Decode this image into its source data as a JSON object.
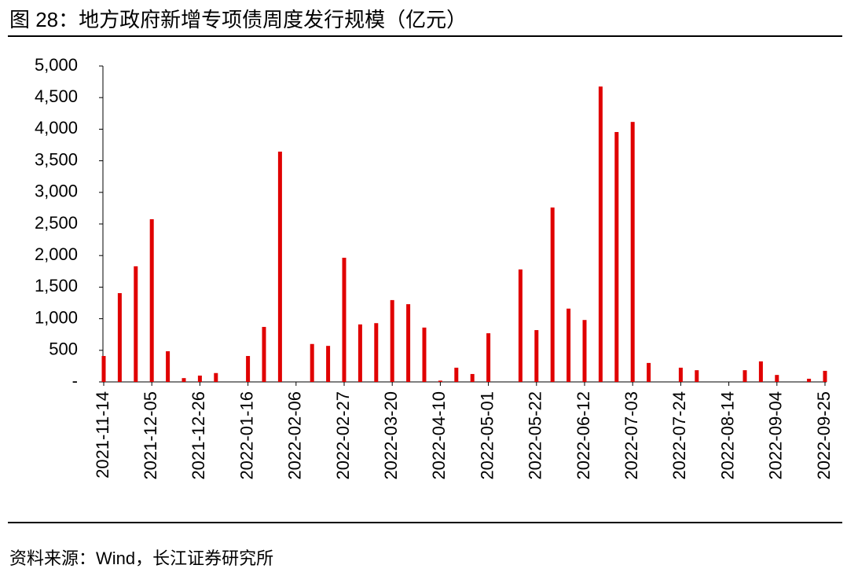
{
  "title": "图 28：地方政府新增专项债周度发行规模（亿元）",
  "source": "资料来源：Wind，长江证券研究所",
  "chart_data": {
    "type": "bar",
    "color": "#e00000",
    "categories": [
      "2021-11-14",
      null,
      null,
      "2021-12-05",
      null,
      null,
      "2021-12-26",
      null,
      null,
      "2022-01-16",
      null,
      null,
      "2022-02-06",
      null,
      null,
      "2022-02-27",
      null,
      null,
      "2022-03-20",
      null,
      null,
      "2022-04-10",
      null,
      null,
      "2022-05-01",
      null,
      null,
      "2022-05-22",
      null,
      null,
      "2022-06-12",
      null,
      null,
      "2022-07-03",
      null,
      null,
      "2022-07-24",
      null,
      null,
      "2022-08-14",
      null,
      null,
      "2022-09-04",
      null,
      null,
      "2022-09-25"
    ],
    "values": [
      410,
      1405,
      1830,
      2575,
      485,
      60,
      100,
      140,
      0,
      410,
      870,
      3645,
      0,
      600,
      570,
      1965,
      910,
      930,
      1295,
      1230,
      860,
      20,
      225,
      125,
      770,
      0,
      1780,
      820,
      2760,
      1160,
      980,
      4675,
      3955,
      4115,
      300,
      0,
      225,
      185,
      0,
      0,
      185,
      325,
      110,
      0,
      50,
      175
    ],
    "ylim": [
      0,
      5000
    ],
    "yticks": [
      {
        "value": 0,
        "label": "-"
      },
      500,
      {
        "value": 1000,
        "label": "1,000"
      },
      {
        "value": 1500,
        "label": "1,500"
      },
      {
        "value": 2000,
        "label": "2,000"
      },
      {
        "value": 2500,
        "label": "2,500"
      },
      {
        "value": 3000,
        "label": "3,000"
      },
      {
        "value": 3500,
        "label": "3,500"
      },
      {
        "value": 4000,
        "label": "4,000"
      },
      {
        "value": 4500,
        "label": "4,500"
      },
      {
        "value": 5000,
        "label": "5,000"
      }
    ]
  }
}
